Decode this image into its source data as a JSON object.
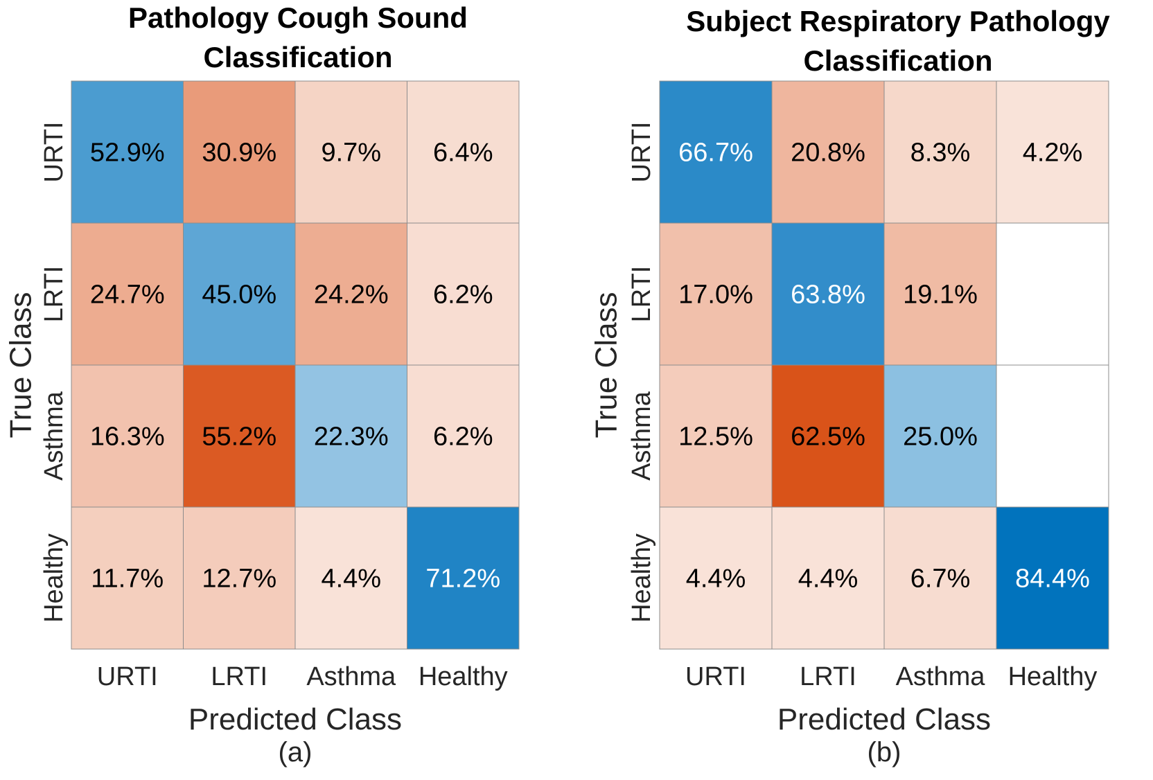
{
  "chart_data": [
    {
      "type": "heatmap",
      "title_lines": [
        "Pathology Cough Sound",
        "Classification"
      ],
      "xlabel": "Predicted Class",
      "ylabel": "True Class",
      "caption": "(a)",
      "x_categories": [
        "URTI",
        "LRTI",
        "Asthma",
        "Healthy"
      ],
      "y_categories": [
        "URTI",
        "LRTI",
        "Asthma",
        "Healthy"
      ],
      "values": [
        [
          52.9,
          30.9,
          9.7,
          6.4
        ],
        [
          24.7,
          45.0,
          24.2,
          6.2
        ],
        [
          16.3,
          55.2,
          22.3,
          6.2
        ],
        [
          11.7,
          12.7,
          4.4,
          71.2
        ]
      ],
      "value_format": "percent_1dp",
      "diagonal_color": "#0072BD",
      "offdiagonal_color": "#D95319"
    },
    {
      "type": "heatmap",
      "title_lines": [
        "Subject Respiratory Pathology",
        "Classification"
      ],
      "xlabel": "Predicted Class",
      "ylabel": "True Class",
      "caption": "(b)",
      "x_categories": [
        "URTI",
        "LRTI",
        "Asthma",
        "Healthy"
      ],
      "y_categories": [
        "URTI",
        "LRTI",
        "Asthma",
        "Healthy"
      ],
      "values": [
        [
          66.7,
          20.8,
          8.3,
          4.2
        ],
        [
          17.0,
          63.8,
          19.1,
          null
        ],
        [
          12.5,
          62.5,
          25.0,
          null
        ],
        [
          4.4,
          4.4,
          6.7,
          84.4
        ]
      ],
      "value_format": "percent_1dp",
      "diagonal_color": "#0072BD",
      "offdiagonal_color": "#D95319"
    }
  ]
}
